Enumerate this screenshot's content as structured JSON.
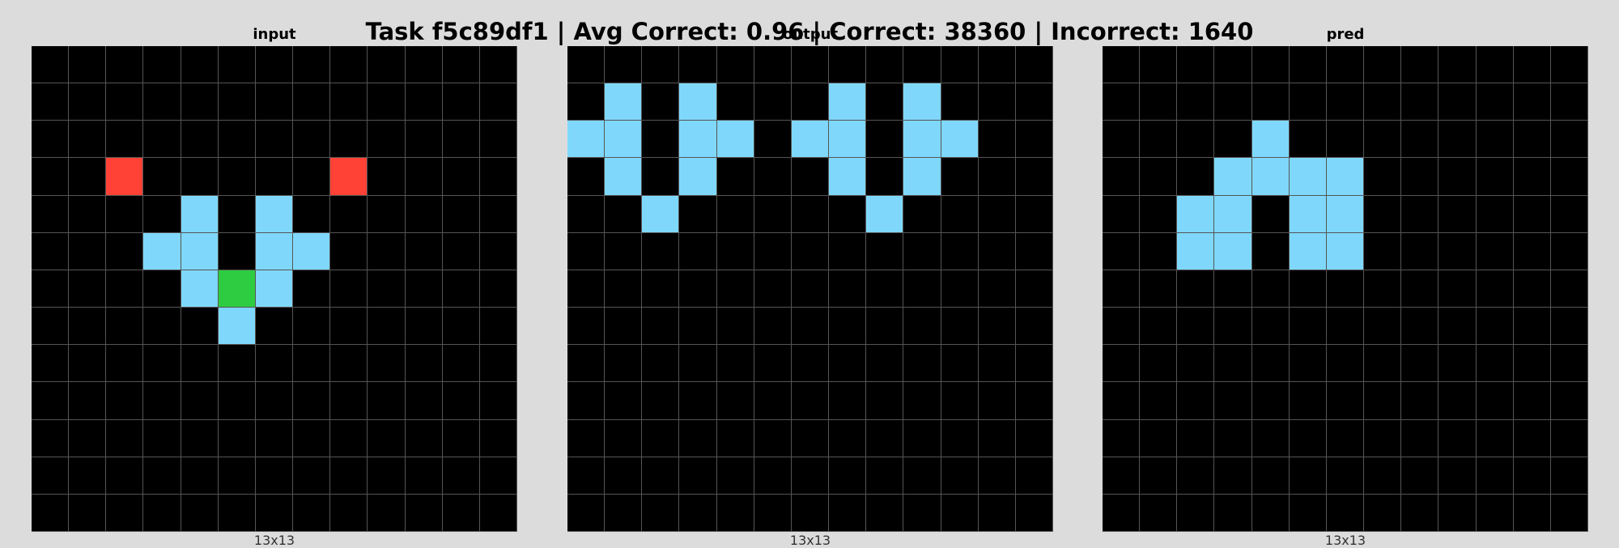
{
  "title": "Task f5c89df1 | Avg Correct: 0.96 | Correct: 38360 | Incorrect: 1640",
  "palette": {
    "0": "#000000",
    "1": "#7fd8fc",
    "2": "#ff4136",
    "3": "#2ecc40"
  },
  "panels": [
    {
      "title": "input",
      "size_label": "13x13",
      "grid": [
        [
          0,
          0,
          0,
          0,
          0,
          0,
          0,
          0,
          0,
          0,
          0,
          0,
          0
        ],
        [
          0,
          0,
          0,
          0,
          0,
          0,
          0,
          0,
          0,
          0,
          0,
          0,
          0
        ],
        [
          0,
          0,
          0,
          0,
          0,
          0,
          0,
          0,
          0,
          0,
          0,
          0,
          0
        ],
        [
          0,
          0,
          2,
          0,
          0,
          0,
          0,
          0,
          2,
          0,
          0,
          0,
          0
        ],
        [
          0,
          0,
          0,
          0,
          1,
          0,
          1,
          0,
          0,
          0,
          0,
          0,
          0
        ],
        [
          0,
          0,
          0,
          1,
          1,
          0,
          1,
          1,
          0,
          0,
          0,
          0,
          0
        ],
        [
          0,
          0,
          0,
          0,
          1,
          3,
          1,
          0,
          0,
          0,
          0,
          0,
          0
        ],
        [
          0,
          0,
          0,
          0,
          0,
          1,
          0,
          0,
          0,
          0,
          0,
          0,
          0
        ],
        [
          0,
          0,
          0,
          0,
          0,
          0,
          0,
          0,
          0,
          0,
          0,
          0,
          0
        ],
        [
          0,
          0,
          0,
          0,
          0,
          0,
          0,
          0,
          0,
          0,
          0,
          0,
          0
        ],
        [
          0,
          0,
          0,
          0,
          0,
          0,
          0,
          0,
          0,
          0,
          0,
          0,
          0
        ],
        [
          0,
          0,
          0,
          0,
          0,
          0,
          0,
          0,
          0,
          0,
          0,
          0,
          0
        ],
        [
          0,
          0,
          0,
          0,
          0,
          0,
          0,
          0,
          0,
          0,
          0,
          0,
          0
        ]
      ]
    },
    {
      "title": "output",
      "size_label": "13x13",
      "grid": [
        [
          0,
          0,
          0,
          0,
          0,
          0,
          0,
          0,
          0,
          0,
          0,
          0,
          0
        ],
        [
          0,
          1,
          0,
          1,
          0,
          0,
          0,
          1,
          0,
          1,
          0,
          0,
          0
        ],
        [
          1,
          1,
          0,
          1,
          1,
          0,
          1,
          1,
          0,
          1,
          1,
          0,
          0
        ],
        [
          0,
          1,
          0,
          1,
          0,
          0,
          0,
          1,
          0,
          1,
          0,
          0,
          0
        ],
        [
          0,
          0,
          1,
          0,
          0,
          0,
          0,
          0,
          1,
          0,
          0,
          0,
          0
        ],
        [
          0,
          0,
          0,
          0,
          0,
          0,
          0,
          0,
          0,
          0,
          0,
          0,
          0
        ],
        [
          0,
          0,
          0,
          0,
          0,
          0,
          0,
          0,
          0,
          0,
          0,
          0,
          0
        ],
        [
          0,
          0,
          0,
          0,
          0,
          0,
          0,
          0,
          0,
          0,
          0,
          0,
          0
        ],
        [
          0,
          0,
          0,
          0,
          0,
          0,
          0,
          0,
          0,
          0,
          0,
          0,
          0
        ],
        [
          0,
          0,
          0,
          0,
          0,
          0,
          0,
          0,
          0,
          0,
          0,
          0,
          0
        ],
        [
          0,
          0,
          0,
          0,
          0,
          0,
          0,
          0,
          0,
          0,
          0,
          0,
          0
        ],
        [
          0,
          0,
          0,
          0,
          0,
          0,
          0,
          0,
          0,
          0,
          0,
          0,
          0
        ],
        [
          0,
          0,
          0,
          0,
          0,
          0,
          0,
          0,
          0,
          0,
          0,
          0,
          0
        ]
      ]
    },
    {
      "title": "pred",
      "size_label": "13x13",
      "grid": [
        [
          0,
          0,
          0,
          0,
          0,
          0,
          0,
          0,
          0,
          0,
          0,
          0,
          0
        ],
        [
          0,
          0,
          0,
          0,
          0,
          0,
          0,
          0,
          0,
          0,
          0,
          0,
          0
        ],
        [
          0,
          0,
          0,
          0,
          1,
          0,
          0,
          0,
          0,
          0,
          0,
          0,
          0
        ],
        [
          0,
          0,
          0,
          1,
          1,
          1,
          1,
          0,
          0,
          0,
          0,
          0,
          0
        ],
        [
          0,
          0,
          1,
          1,
          0,
          1,
          1,
          0,
          0,
          0,
          0,
          0,
          0
        ],
        [
          0,
          0,
          1,
          1,
          0,
          1,
          1,
          0,
          0,
          0,
          0,
          0,
          0
        ],
        [
          0,
          0,
          0,
          0,
          0,
          0,
          0,
          0,
          0,
          0,
          0,
          0,
          0
        ],
        [
          0,
          0,
          0,
          0,
          0,
          0,
          0,
          0,
          0,
          0,
          0,
          0,
          0
        ],
        [
          0,
          0,
          0,
          0,
          0,
          0,
          0,
          0,
          0,
          0,
          0,
          0,
          0
        ],
        [
          0,
          0,
          0,
          0,
          0,
          0,
          0,
          0,
          0,
          0,
          0,
          0,
          0
        ],
        [
          0,
          0,
          0,
          0,
          0,
          0,
          0,
          0,
          0,
          0,
          0,
          0,
          0
        ],
        [
          0,
          0,
          0,
          0,
          0,
          0,
          0,
          0,
          0,
          0,
          0,
          0,
          0
        ],
        [
          0,
          0,
          0,
          0,
          0,
          0,
          0,
          0,
          0,
          0,
          0,
          0,
          0
        ]
      ]
    }
  ]
}
